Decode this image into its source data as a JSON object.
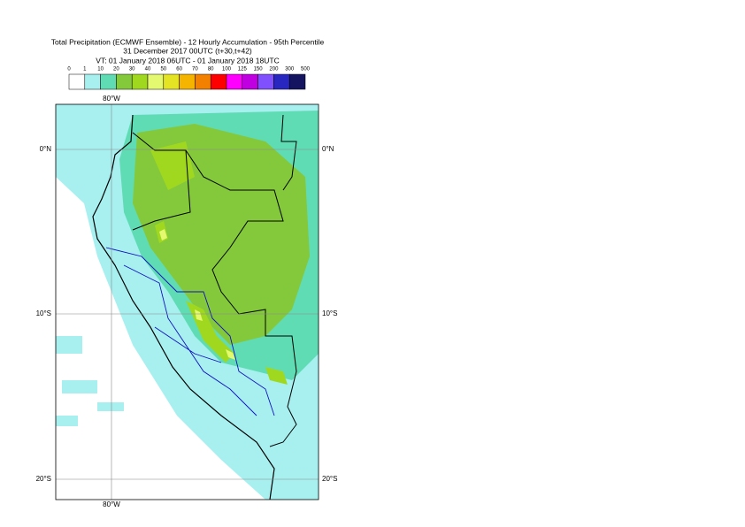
{
  "header": {
    "title_lines": [
      "Total Precipitation (ECMWF Ensemble) - 12 Hourly Accumulation - 95th Percentile",
      "31 December 2017 00UTC (t+30,t+42)",
      "VT: 01 January 2018 06UTC - 01 January 2018 18UTC"
    ]
  },
  "legend": {
    "labels": [
      0,
      1,
      10,
      20,
      30,
      40,
      50,
      60,
      70,
      80,
      100,
      125,
      150,
      200,
      300,
      500
    ],
    "colors": [
      "#ffffff",
      "#a8f0f0",
      "#60dcb4",
      "#84c83c",
      "#a0d820",
      "#e4f870",
      "#e4e424",
      "#f4b400",
      "#f48000",
      "#ff0000",
      "#ff00ff",
      "#c000e0",
      "#8050ff",
      "#2828c0",
      "#141460"
    ]
  },
  "map": {
    "lon_top": "80°W",
    "lon_bottom": "80°W",
    "lat_left": [
      "0°N",
      "10°S",
      "20°S"
    ],
    "lat_right": [
      "0°N",
      "10°S",
      "20°S"
    ]
  }
}
